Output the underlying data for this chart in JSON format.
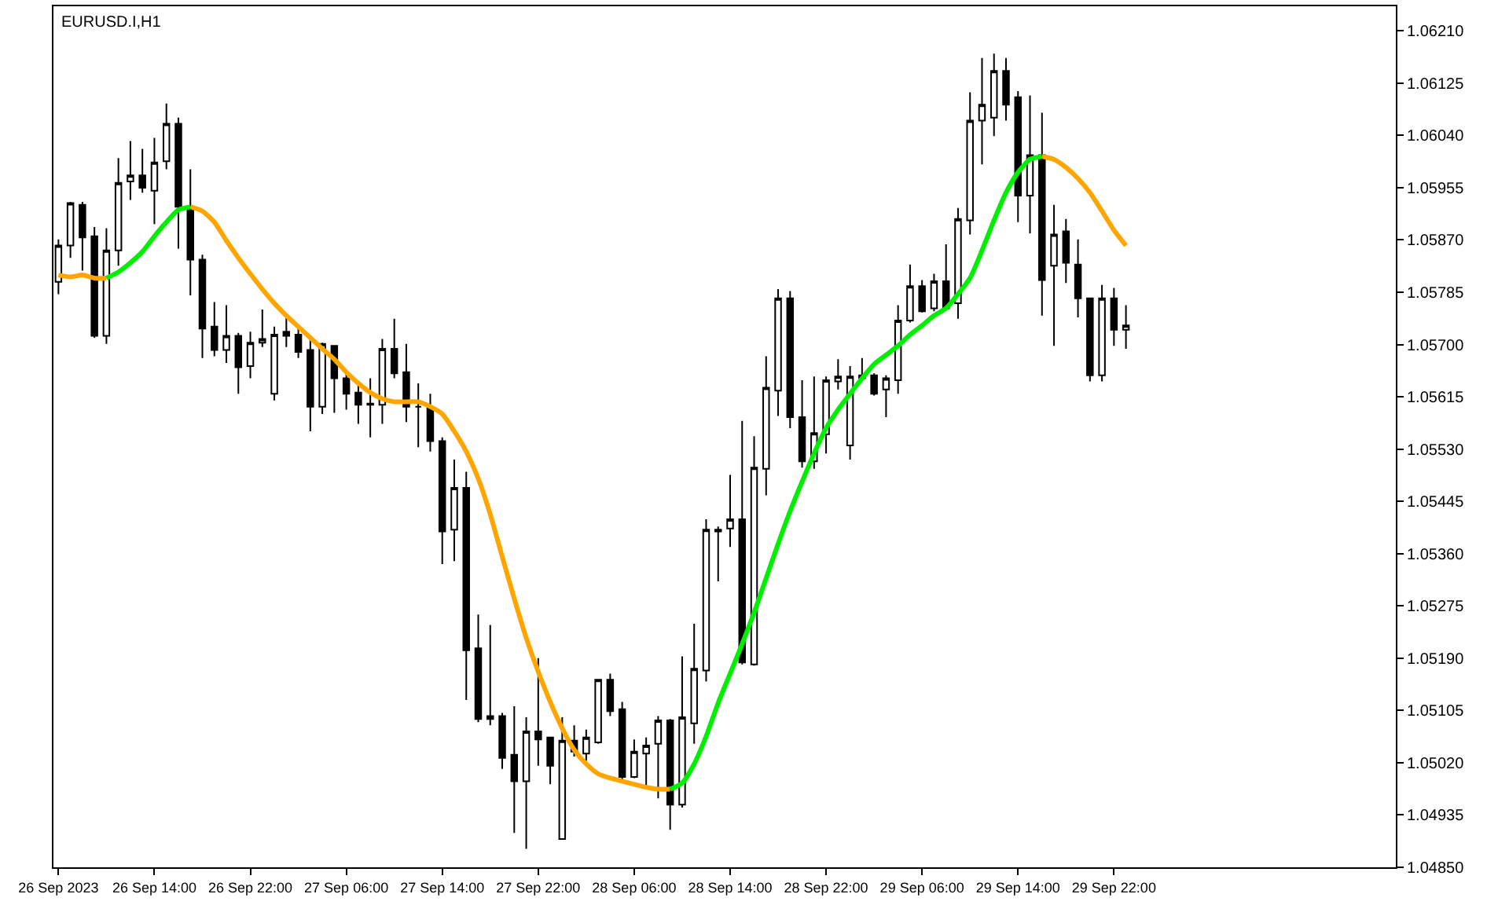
{
  "chart_data": {
    "type": "candlestick",
    "title": "EURUSD.I,H1",
    "x": [
      "2023-09-26T06:00",
      "2023-09-26T07:00",
      "2023-09-26T08:00",
      "2023-09-26T09:00",
      "2023-09-26T10:00",
      "2023-09-26T11:00",
      "2023-09-26T12:00",
      "2023-09-26T13:00",
      "2023-09-26T14:00",
      "2023-09-26T15:00",
      "2023-09-26T16:00",
      "2023-09-26T17:00",
      "2023-09-26T18:00",
      "2023-09-26T19:00",
      "2023-09-26T20:00",
      "2023-09-26T21:00",
      "2023-09-26T22:00",
      "2023-09-26T23:00",
      "2023-09-27T00:00",
      "2023-09-27T01:00",
      "2023-09-27T02:00",
      "2023-09-27T03:00",
      "2023-09-27T04:00",
      "2023-09-27T05:00",
      "2023-09-27T06:00",
      "2023-09-27T07:00",
      "2023-09-27T08:00",
      "2023-09-27T09:00",
      "2023-09-27T10:00",
      "2023-09-27T11:00",
      "2023-09-27T12:00",
      "2023-09-27T13:00",
      "2023-09-27T14:00",
      "2023-09-27T15:00",
      "2023-09-27T16:00",
      "2023-09-27T17:00",
      "2023-09-27T18:00",
      "2023-09-27T19:00",
      "2023-09-27T20:00",
      "2023-09-27T21:00",
      "2023-09-27T22:00",
      "2023-09-27T23:00",
      "2023-09-28T00:00",
      "2023-09-28T01:00",
      "2023-09-28T02:00",
      "2023-09-28T03:00",
      "2023-09-28T04:00",
      "2023-09-28T05:00",
      "2023-09-28T06:00",
      "2023-09-28T07:00",
      "2023-09-28T08:00",
      "2023-09-28T09:00",
      "2023-09-28T10:00",
      "2023-09-28T11:00",
      "2023-09-28T12:00",
      "2023-09-28T13:00",
      "2023-09-28T14:00",
      "2023-09-28T15:00",
      "2023-09-28T16:00",
      "2023-09-28T17:00",
      "2023-09-28T18:00",
      "2023-09-28T19:00",
      "2023-09-28T20:00",
      "2023-09-28T21:00",
      "2023-09-28T22:00",
      "2023-09-28T23:00",
      "2023-09-29T00:00",
      "2023-09-29T01:00",
      "2023-09-29T02:00",
      "2023-09-29T03:00",
      "2023-09-29T04:00",
      "2023-09-29T05:00",
      "2023-09-29T06:00",
      "2023-09-29T07:00",
      "2023-09-29T08:00",
      "2023-09-29T09:00",
      "2023-09-29T10:00",
      "2023-09-29T11:00",
      "2023-09-29T12:00",
      "2023-09-29T13:00",
      "2023-09-29T14:00",
      "2023-09-29T15:00",
      "2023-09-29T16:00",
      "2023-09-29T17:00",
      "2023-09-29T18:00",
      "2023-09-29T19:00",
      "2023-09-29T20:00",
      "2023-09-29T21:00",
      "2023-09-29T22:00",
      "2023-09-29T23:00"
    ],
    "ohlc": [
      [
        1.05802,
        1.05871,
        1.05782,
        1.05861
      ],
      [
        1.05861,
        1.05932,
        1.05841,
        1.0593
      ],
      [
        1.05927,
        1.05932,
        1.0582,
        1.05874
      ],
      [
        1.05876,
        1.05891,
        1.05711,
        1.05714
      ],
      [
        1.05714,
        1.05889,
        1.05701,
        1.05853
      ],
      [
        1.05853,
        1.06003,
        1.05828,
        1.05963
      ],
      [
        1.05965,
        1.06031,
        1.05935,
        1.05975
      ],
      [
        1.05975,
        1.06018,
        1.05947,
        1.05955
      ],
      [
        1.0595,
        1.06036,
        1.05896,
        1.05996
      ],
      [
        1.05998,
        1.06092,
        1.05985,
        1.06059
      ],
      [
        1.06059,
        1.06069,
        1.05856,
        1.05924
      ],
      [
        1.05922,
        1.05985,
        1.0578,
        1.05838
      ],
      [
        1.05838,
        1.05846,
        1.05678,
        1.05726
      ],
      [
        1.05729,
        1.05769,
        1.05681,
        1.05691
      ],
      [
        1.05691,
        1.05764,
        1.0567,
        1.05714
      ],
      [
        1.05714,
        1.05719,
        1.0562,
        1.05663
      ],
      [
        1.05665,
        1.05721,
        1.05645,
        1.05703
      ],
      [
        1.05703,
        1.05757,
        1.05696,
        1.05709
      ],
      [
        1.0562,
        1.05729,
        1.05609,
        1.05716
      ],
      [
        1.05721,
        1.05747,
        1.05696,
        1.05714
      ],
      [
        1.05716,
        1.05731,
        1.05678,
        1.05688
      ],
      [
        1.05691,
        1.05711,
        1.05559,
        1.05599
      ],
      [
        1.05599,
        1.05703,
        1.05587,
        1.05701
      ],
      [
        1.05698,
        1.05698,
        1.05589,
        1.05645
      ],
      [
        1.05645,
        1.05655,
        1.05594,
        1.0562
      ],
      [
        1.05622,
        1.05635,
        1.05571,
        1.05602
      ],
      [
        1.05602,
        1.05645,
        1.05549,
        1.05604
      ],
      [
        1.05602,
        1.05709,
        1.05571,
        1.05693
      ],
      [
        1.05693,
        1.05742,
        1.05645,
        1.05653
      ],
      [
        1.05655,
        1.05701,
        1.05574,
        1.05599
      ],
      [
        1.05599,
        1.05637,
        1.05533,
        1.05599
      ],
      [
        1.05597,
        1.0562,
        1.05526,
        1.05543
      ],
      [
        1.05543,
        1.05549,
        1.05343,
        1.05396
      ],
      [
        1.05399,
        1.05513,
        1.05348,
        1.05467
      ],
      [
        1.05467,
        1.05493,
        1.05122,
        1.05203
      ],
      [
        1.05206,
        1.05261,
        1.05086,
        1.05091
      ],
      [
        1.05091,
        1.05244,
        1.05081,
        1.05096
      ],
      [
        1.05096,
        1.05101,
        1.0501,
        1.05028
      ],
      [
        1.05033,
        1.05112,
        1.04906,
        1.0499
      ],
      [
        1.0499,
        1.05094,
        1.0488,
        1.05071
      ],
      [
        1.05071,
        1.0519,
        1.05015,
        1.05058
      ],
      [
        1.05061,
        1.05061,
        1.04985,
        1.05015
      ],
      [
        1.04896,
        1.05094,
        1.04896,
        1.05056
      ],
      [
        1.05056,
        1.05081,
        1.0503,
        1.05038
      ],
      [
        1.05035,
        1.05074,
        1.05023,
        1.05061
      ],
      [
        1.05053,
        1.05155,
        1.05051,
        1.05155
      ],
      [
        1.05155,
        1.05165,
        1.05096,
        1.05104
      ],
      [
        1.05107,
        1.05119,
        1.04992,
        1.04997
      ],
      [
        1.04997,
        1.05058,
        1.04995,
        1.05038
      ],
      [
        1.05035,
        1.05061,
        1.04982,
        1.05048
      ],
      [
        1.05051,
        1.05096,
        1.04962,
        1.05089
      ],
      [
        1.05089,
        1.05091,
        1.04911,
        1.04952
      ],
      [
        1.04952,
        1.05193,
        1.04947,
        1.05094
      ],
      [
        1.05084,
        1.05246,
        1.05051,
        1.05173
      ],
      [
        1.0517,
        1.05416,
        1.05152,
        1.05399
      ],
      [
        1.05396,
        1.05404,
        1.05315,
        1.05399
      ],
      [
        1.05401,
        1.05488,
        1.05371,
        1.05416
      ],
      [
        1.05416,
        1.05576,
        1.0518,
        1.05183
      ],
      [
        1.0518,
        1.05551,
        1.05178,
        1.055
      ],
      [
        1.05498,
        1.05681,
        1.05455,
        1.0563
      ],
      [
        1.05625,
        1.0579,
        1.05584,
        1.05775
      ],
      [
        1.05775,
        1.05787,
        1.05564,
        1.05582
      ],
      [
        1.05582,
        1.05642,
        1.055,
        1.0551
      ],
      [
        1.0551,
        1.05648,
        1.05498,
        1.05556
      ],
      [
        1.05554,
        1.05648,
        1.05523,
        1.05642
      ],
      [
        1.0564,
        1.05676,
        1.05627,
        1.05648
      ],
      [
        1.05536,
        1.05665,
        1.05513,
        1.05648
      ],
      [
        1.05645,
        1.05678,
        1.05642,
        1.0565
      ],
      [
        1.0565,
        1.05653,
        1.05617,
        1.0562
      ],
      [
        1.05627,
        1.0565,
        1.05582,
        1.05645
      ],
      [
        1.05642,
        1.05764,
        1.0562,
        1.05739
      ],
      [
        1.05739,
        1.0583,
        1.05736,
        1.05795
      ],
      [
        1.05795,
        1.05805,
        1.05752,
        1.05754
      ],
      [
        1.05759,
        1.05815,
        1.05754,
        1.05803
      ],
      [
        1.05803,
        1.05863,
        1.05757,
        1.05759
      ],
      [
        1.05767,
        1.05922,
        1.05742,
        1.05904
      ],
      [
        1.05902,
        1.0611,
        1.05879,
        1.06064
      ],
      [
        1.06064,
        1.06166,
        1.05993,
        1.0609
      ],
      [
        1.06069,
        1.06173,
        1.06039,
        1.06145
      ],
      [
        1.06145,
        1.06166,
        1.06064,
        1.0609
      ],
      [
        1.06102,
        1.06112,
        1.05899,
        1.05942
      ],
      [
        1.05942,
        1.06105,
        1.05881,
        1.06008
      ],
      [
        1.06008,
        1.06077,
        1.05747,
        1.05805
      ],
      [
        1.05828,
        1.05927,
        1.05698,
        1.05879
      ],
      [
        1.05884,
        1.05904,
        1.058,
        1.05833
      ],
      [
        1.0583,
        1.05871,
        1.05744,
        1.05775
      ],
      [
        1.05775,
        1.05775,
        1.0564,
        1.0565
      ],
      [
        1.0565,
        1.05797,
        1.0564,
        1.05775
      ],
      [
        1.05775,
        1.05792,
        1.05698,
        1.05724
      ],
      [
        1.05724,
        1.05764,
        1.05693,
        1.05731
      ]
    ],
    "series": [
      {
        "type": "line",
        "color": "#ffa500",
        "values": [
          1.05813,
          1.0581,
          1.05813,
          1.05808,
          1.05808,
          null,
          null,
          null,
          null,
          null,
          null,
          1.05924,
          1.05917,
          1.05899,
          1.05869,
          1.05841,
          1.05815,
          1.0579,
          1.05767,
          1.05747,
          1.05729,
          1.05711,
          1.05693,
          1.05676,
          1.05655,
          1.05637,
          1.05622,
          1.05612,
          1.05607,
          1.05607,
          1.05607,
          1.05599,
          1.05587,
          1.05559,
          1.05526,
          1.05482,
          1.05424,
          1.05355,
          1.05287,
          1.05223,
          1.05168,
          1.05119,
          1.05076,
          1.05041,
          1.05018,
          1.05002,
          1.04995,
          1.0499,
          1.04985,
          1.0498,
          1.04977,
          1.04977,
          null,
          null,
          null,
          null,
          null,
          null,
          null,
          null,
          null,
          null,
          null,
          null,
          null,
          null,
          null,
          null,
          null,
          null,
          null,
          null,
          null,
          null,
          null,
          null,
          null,
          null,
          null,
          null,
          null,
          null,
          1.06006,
          1.06001,
          1.05988,
          1.0597,
          1.05947,
          1.05917,
          1.05886,
          1.05861
        ]
      },
      {
        "type": "line",
        "color": "#00ee00",
        "values": [
          null,
          null,
          null,
          null,
          1.05808,
          1.05818,
          1.05833,
          1.05851,
          1.05876,
          1.05899,
          1.05919,
          1.05924,
          null,
          null,
          null,
          null,
          null,
          null,
          null,
          null,
          null,
          null,
          null,
          null,
          null,
          null,
          null,
          null,
          null,
          null,
          null,
          null,
          null,
          null,
          null,
          null,
          null,
          null,
          null,
          null,
          null,
          null,
          null,
          null,
          null,
          null,
          null,
          null,
          null,
          null,
          null,
          1.04977,
          1.04987,
          1.05018,
          1.05063,
          1.05117,
          1.05165,
          1.05213,
          1.05264,
          1.0532,
          1.05376,
          1.05429,
          1.05477,
          1.05523,
          1.05564,
          1.05594,
          1.0562,
          1.05645,
          1.05668,
          1.05683,
          1.05698,
          1.05716,
          1.05731,
          1.05747,
          1.05759,
          1.05782,
          1.05808,
          1.05853,
          1.05902,
          1.05947,
          1.0598,
          1.06001,
          1.06006,
          null,
          null,
          null,
          null,
          null,
          null,
          null
        ]
      }
    ],
    "xlim": [
      "2023-09-26T05:35",
      "2023-09-30T21:30"
    ],
    "xticks": [
      {
        "value": "2023-09-26T06:00",
        "label": "26 Sep 2023"
      },
      {
        "value": "2023-09-26T14:00",
        "label": "26 Sep 14:00"
      },
      {
        "value": "2023-09-26T22:00",
        "label": "26 Sep 22:00"
      },
      {
        "value": "2023-09-27T06:00",
        "label": "27 Sep 06:00"
      },
      {
        "value": "2023-09-27T14:00",
        "label": "27 Sep 14:00"
      },
      {
        "value": "2023-09-27T22:00",
        "label": "27 Sep 22:00"
      },
      {
        "value": "2023-09-28T06:00",
        "label": "28 Sep 06:00"
      },
      {
        "value": "2023-09-28T14:00",
        "label": "28 Sep 14:00"
      },
      {
        "value": "2023-09-28T22:00",
        "label": "28 Sep 22:00"
      },
      {
        "value": "2023-09-29T06:00",
        "label": "29 Sep 06:00"
      },
      {
        "value": "2023-09-29T14:00",
        "label": "29 Sep 14:00"
      },
      {
        "value": "2023-09-29T22:00",
        "label": "29 Sep 22:00"
      }
    ],
    "ylim": [
      1.0485,
      1.0625
    ],
    "yticks": [
      {
        "value": 1.0485,
        "label": "1.04850"
      },
      1.04935,
      {
        "value": 1.0502,
        "label": "1.05020"
      },
      1.05105,
      {
        "value": 1.0519,
        "label": "1.05190"
      },
      1.05275,
      {
        "value": 1.0536,
        "label": "1.05360"
      },
      1.05445,
      {
        "value": 1.0553,
        "label": "1.05530"
      },
      1.05615,
      {
        "value": 1.057,
        "label": "1.05700"
      },
      1.05785,
      {
        "value": 1.0587,
        "label": "1.05870"
      },
      1.05955,
      {
        "value": 1.0604,
        "label": "1.06040"
      },
      1.06125,
      {
        "value": 1.0621,
        "label": "1.06210"
      }
    ]
  }
}
